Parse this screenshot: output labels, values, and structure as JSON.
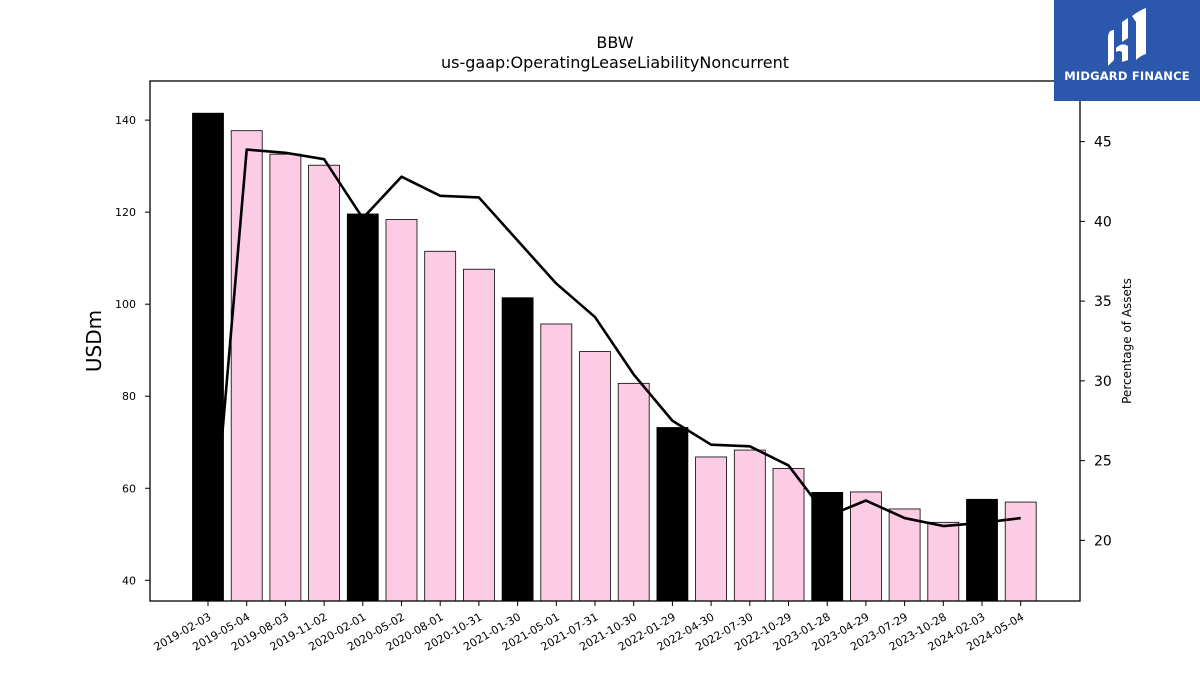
{
  "chart_data": {
    "type": "bar",
    "title": "BBW",
    "subtitle": "us-gaap:OperatingLeaseLiabilityNoncurrent",
    "ylabel": "USDm",
    "y2label": "Percentage of Assets",
    "ylim": [
      35.5,
      148.5
    ],
    "y2lim": [
      16.2,
      48.8
    ],
    "yticks": [
      40,
      60,
      80,
      100,
      120,
      140
    ],
    "y2ticks": [
      20,
      25,
      30,
      35,
      40,
      45
    ],
    "categories": [
      "2019-02-03",
      "2019-05-04",
      "2019-08-03",
      "2019-11-02",
      "2020-02-01",
      "2020-05-02",
      "2020-08-01",
      "2020-10-31",
      "2021-01-30",
      "2021-05-01",
      "2021-07-31",
      "2021-10-30",
      "2022-01-29",
      "2022-04-30",
      "2022-07-30",
      "2022-10-29",
      "2023-01-28",
      "2023-04-29",
      "2023-07-29",
      "2023-10-28",
      "2024-02-03",
      "2024-05-04"
    ],
    "series": [
      {
        "values": [
          141.5,
          137.7,
          132.6,
          130.2,
          119.6,
          118.4,
          111.5,
          107.6,
          101.4,
          95.7,
          89.7,
          82.8,
          73.2,
          66.8,
          68.3,
          64.3,
          59.1,
          59.2,
          55.5,
          52.6,
          57.6,
          57.0
        ]
      },
      {
        "type": "line",
        "axis": "right",
        "values": [
          16.2,
          44.5,
          44.3,
          43.9,
          40.2,
          42.8,
          41.6,
          41.5,
          38.8,
          36.1,
          34.0,
          30.4,
          27.5,
          26.0,
          25.9,
          24.7,
          21.5,
          22.5,
          21.4,
          20.9,
          21.1,
          21.4
        ]
      }
    ],
    "bar_colors": {
      "fiscal_year_end": "#000000",
      "quarter": "#fccbe4"
    },
    "line_color": "#000000",
    "grid": false
  },
  "logo": {
    "text": "MIDGARD FINANCE",
    "background": "#2b58ad"
  }
}
